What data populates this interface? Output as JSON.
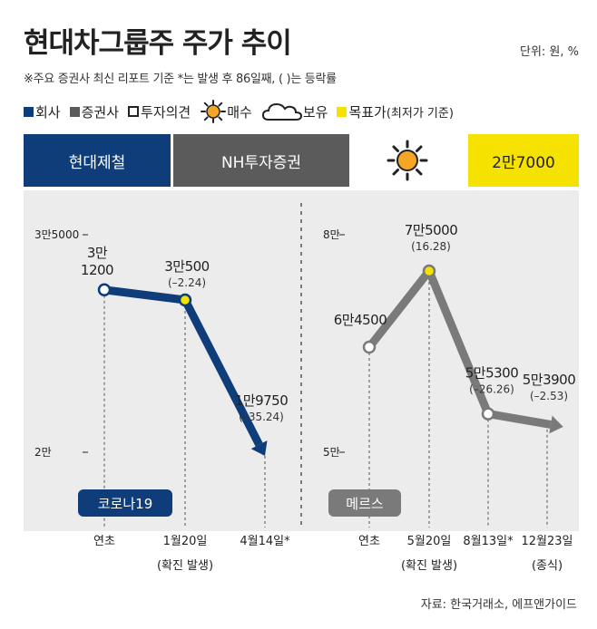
{
  "title": "현대차그룹주 주가 추이",
  "unit": "단위: 원, %",
  "note": "※주요 증권사 최신 리포트 기준  *는 발생 후 86일째, (  )는 등락률",
  "legend": {
    "company": "회사",
    "broker": "증권사",
    "opinion": "투자의견",
    "buy": "매수",
    "hold": "보유",
    "target": "목표가",
    "target_note": "(최저가 기준)",
    "colors": {
      "company": "#0e3d7a",
      "broker": "#5b5b5b",
      "target": "#f6e200",
      "sun": "#f5a623"
    }
  },
  "header": {
    "company": "현대제철",
    "broker": "NH투자증권",
    "opinion_icon": "sun-icon",
    "target_price": "2만7000"
  },
  "footer": "자료: 한국거래소, 에프앤가이드",
  "chart_data": [
    {
      "type": "line",
      "name": "코로나19",
      "color": "#0e3d7a",
      "y_ticks": [
        {
          "value": 35000,
          "label": "3만5000"
        },
        {
          "value": 20000,
          "label": "2만"
        }
      ],
      "points": [
        {
          "x_label": "연초",
          "x_sub": "",
          "value": 31200,
          "label": "3만\n1200",
          "change": ""
        },
        {
          "x_label": "1월20일",
          "x_sub": "(확진 발생)",
          "value": 30500,
          "label": "3만500",
          "change": "(–2.24)"
        },
        {
          "x_label": "4월14일*",
          "x_sub": "",
          "value": 19750,
          "label": "1만9750",
          "change": "(–35.24)"
        }
      ]
    },
    {
      "type": "line",
      "name": "메르스",
      "color": "#7a7a7a",
      "y_ticks": [
        {
          "value": 80000,
          "label": "8만"
        },
        {
          "value": 50000,
          "label": "5만"
        }
      ],
      "points": [
        {
          "x_label": "연초",
          "x_sub": "",
          "value": 64500,
          "label": "6만4500",
          "change": ""
        },
        {
          "x_label": "5월20일",
          "x_sub": "(확진 발생)",
          "value": 75000,
          "label": "7만5000",
          "change": "(16.28)"
        },
        {
          "x_label": "8월13일*",
          "x_sub": "",
          "value": 55300,
          "label": "5만5300",
          "change": "(–26.26)"
        },
        {
          "x_label": "12월23일",
          "x_sub": "(종식)",
          "value": 53900,
          "label": "5만3900",
          "change": "(–2.53)"
        }
      ]
    }
  ]
}
